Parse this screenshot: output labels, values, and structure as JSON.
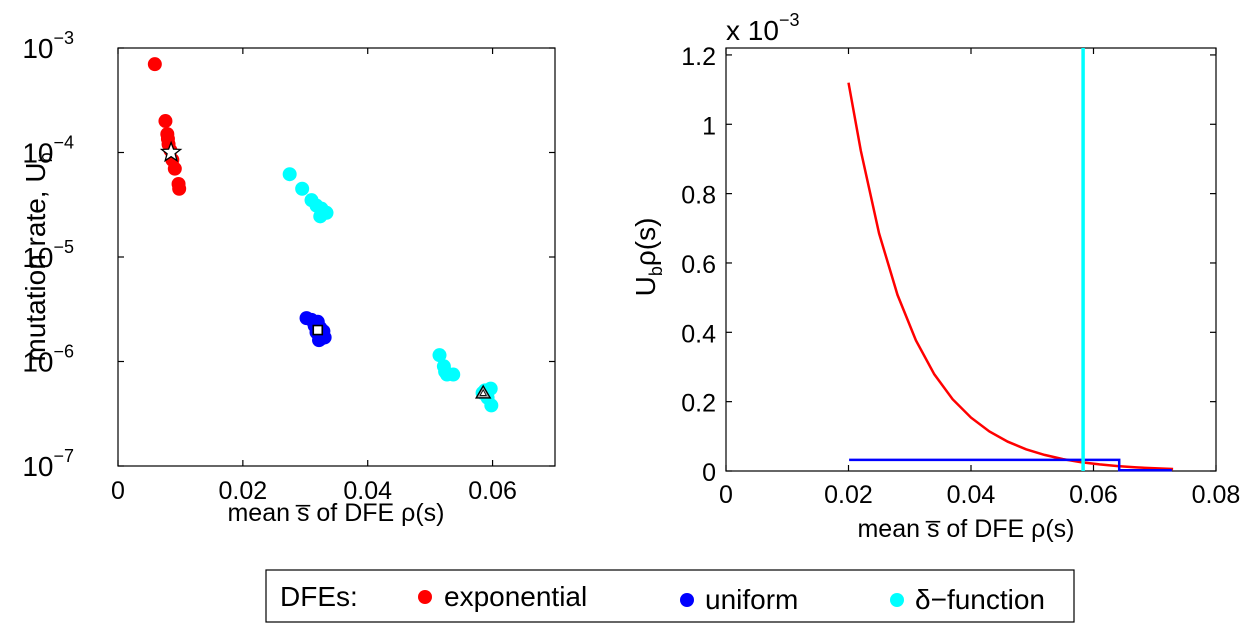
{
  "chart_data": [
    {
      "type": "scatter",
      "xlabel": "mean s̅ of DFE ρ(s)",
      "ylabel": "mutation rate, U",
      "ylabel_sub": "b",
      "xlim": [
        0,
        0.07
      ],
      "ylim": [
        1e-07,
        0.001
      ],
      "yscale": "log",
      "xticks": [
        "0",
        "0.02",
        "0.04",
        "0.06"
      ],
      "ytick_base": "10",
      "ytick_exponents": [
        "−3",
        "−4",
        "−5",
        "−6",
        "−7"
      ],
      "series": [
        {
          "name": "exponential",
          "color": "#ff0000",
          "points": [
            [
              0.0059,
              0.0007
            ],
            [
              0.0076,
              0.0002
            ],
            [
              0.0079,
              0.00015
            ],
            [
              0.008,
              0.000135
            ],
            [
              0.0081,
              0.00012
            ],
            [
              0.0084,
              0.000105
            ],
            [
              0.0087,
              8.5e-05
            ],
            [
              0.0091,
              7e-05
            ],
            [
              0.0097,
              5e-05
            ],
            [
              0.0098,
              4.5e-05
            ]
          ]
        },
        {
          "name": "uniform",
          "color": "#0000ff",
          "points": [
            [
              0.0302,
              2.6e-06
            ],
            [
              0.031,
              2.5e-06
            ],
            [
              0.0315,
              2.2e-06
            ],
            [
              0.032,
              2.4e-06
            ],
            [
              0.0318,
              1.9e-06
            ],
            [
              0.0324,
              2.1e-06
            ],
            [
              0.0328,
              1.75e-06
            ],
            [
              0.0325,
              1.65e-06
            ],
            [
              0.0331,
              1.7e-06
            ],
            [
              0.0329,
              1.95e-06
            ],
            [
              0.0322,
              1.6e-06
            ]
          ]
        },
        {
          "name": "δ−function",
          "color": "#00ffff",
          "points": [
            [
              0.0275,
              6.2e-05
            ],
            [
              0.0295,
              4.5e-05
            ],
            [
              0.031,
              3.5e-05
            ],
            [
              0.0318,
              3.1e-05
            ],
            [
              0.0326,
              2.9e-05
            ],
            [
              0.0334,
              2.65e-05
            ],
            [
              0.0324,
              2.45e-05
            ],
            [
              0.0515,
              1.15e-06
            ],
            [
              0.0522,
              9e-07
            ],
            [
              0.0527,
              7.5e-07
            ],
            [
              0.0537,
              7.5e-07
            ],
            [
              0.0524,
              8e-07
            ],
            [
              0.0584,
              5e-07
            ],
            [
              0.0592,
              4.5e-07
            ],
            [
              0.0598,
              3.8e-07
            ],
            [
              0.0597,
              5.5e-07
            ],
            [
              0.0588,
              5.3e-07
            ]
          ]
        }
      ],
      "markers": [
        {
          "shape": "star",
          "x": 0.0085,
          "y": 0.0001
        },
        {
          "shape": "square",
          "x": 0.032,
          "y": 2e-06
        },
        {
          "shape": "triangle",
          "x": 0.0585,
          "y": 5e-07
        }
      ]
    },
    {
      "type": "line",
      "xlabel": "mean s̅ of DFE ρ(s)",
      "ylabel": "U",
      "ylabel_sub": "b",
      "ylabel_rest": "ρ(s)",
      "scale_label": "x 10",
      "scale_exp": "−3",
      "xlim": [
        0,
        0.08
      ],
      "ylim": [
        0,
        1.22
      ],
      "xticks": [
        "0",
        "0.02",
        "0.04",
        "0.06",
        "0.08"
      ],
      "yticks": [
        "0",
        "0.2",
        "0.4",
        "0.6",
        "0.8",
        "1",
        "1.2"
      ],
      "series": [
        {
          "name": "exponential",
          "color": "#ff0000",
          "points": [
            [
              0.02,
              1.12
            ],
            [
              0.022,
              0.924
            ],
            [
              0.025,
              0.685
            ],
            [
              0.028,
              0.508
            ],
            [
              0.031,
              0.377
            ],
            [
              0.034,
              0.279
            ],
            [
              0.037,
              0.207
            ],
            [
              0.04,
              0.154
            ],
            [
              0.043,
              0.114
            ],
            [
              0.046,
              0.0844
            ],
            [
              0.049,
              0.0626
            ],
            [
              0.052,
              0.0464
            ],
            [
              0.055,
              0.0344
            ],
            [
              0.058,
              0.0255
            ],
            [
              0.061,
              0.0189
            ],
            [
              0.064,
              0.014
            ],
            [
              0.067,
              0.0104
            ],
            [
              0.07,
              0.0077
            ],
            [
              0.073,
              0.0057
            ]
          ]
        },
        {
          "name": "uniform",
          "color": "#0000ff",
          "points": [
            [
              0.0201,
              0.032
            ],
            [
              0.0642,
              0.032
            ],
            [
              0.0642,
              0.002
            ],
            [
              0.0728,
              0.002
            ]
          ]
        },
        {
          "name": "δ−function",
          "color": "#00ffff",
          "points": [
            [
              0.0583,
              0.0
            ],
            [
              0.0583,
              1.22
            ]
          ]
        }
      ]
    }
  ],
  "legend": {
    "title": "DFEs:",
    "items": [
      {
        "label": "exponential",
        "color": "#ff0000"
      },
      {
        "label": "uniform",
        "color": "#0000ff"
      },
      {
        "label": "δ−function",
        "color": "#00ffff"
      }
    ]
  }
}
